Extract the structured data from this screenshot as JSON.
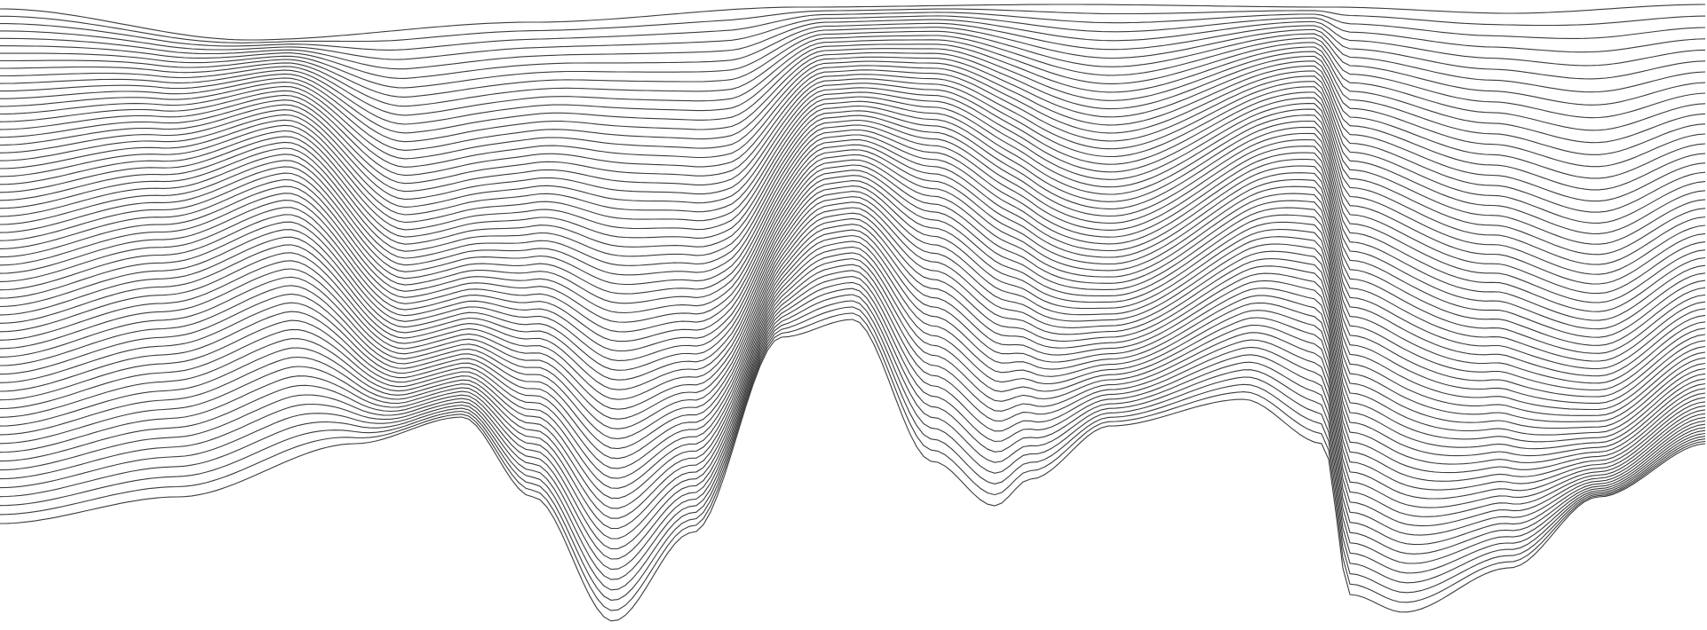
{
  "artwork": {
    "subject": "wave-lines",
    "line_color": "#3c3c3c",
    "background_color": "#ffffff",
    "line_count": 64
  }
}
